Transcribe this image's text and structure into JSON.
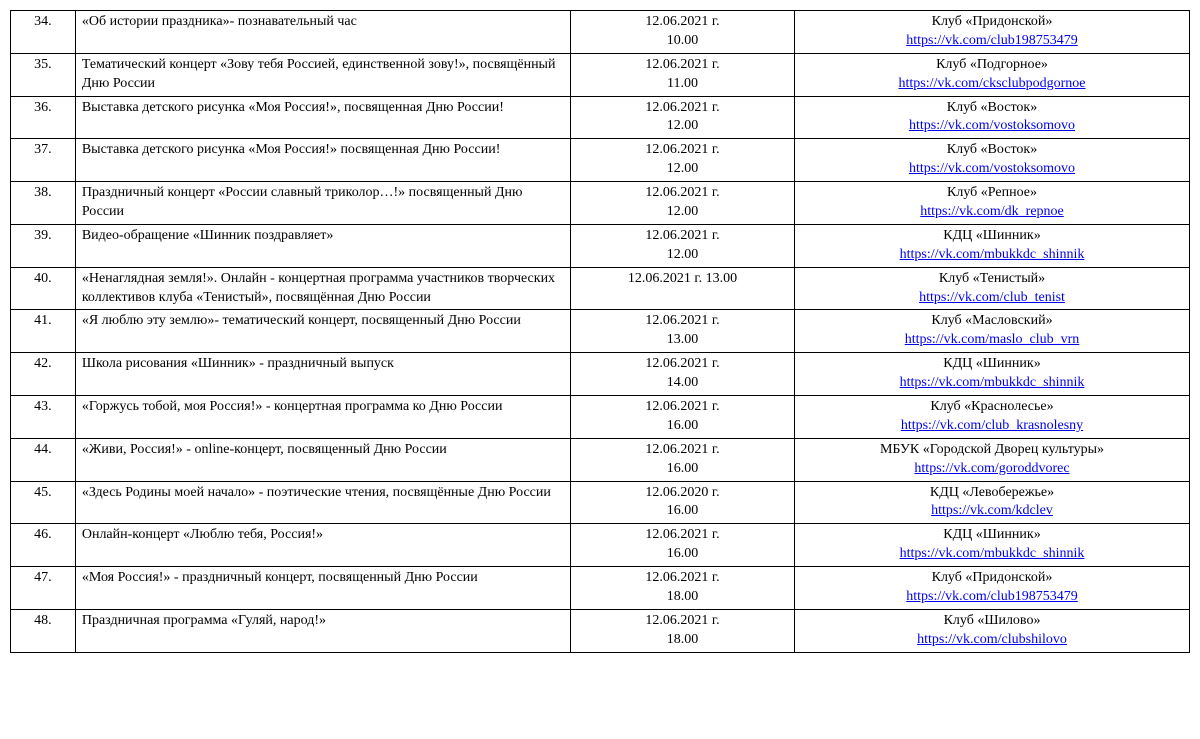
{
  "rows": [
    {
      "num": "34.",
      "desc": "«Об истории праздника»- познавательный час",
      "date": "12.06.2021 г.\n10.00",
      "venue": "Клуб «Придонской»",
      "link_text": "https://vk.com/club198753479",
      "link_href": "https://vk.com/club198753479"
    },
    {
      "num": "35.",
      "desc": "Тематический концерт «Зову тебя Россией, единственной зову!», посвящённый Дню России",
      "date": "12.06.2021 г.\n11.00",
      "venue": "Клуб «Подгорное»",
      "link_text": "https://vk.com/cksclubpodgornoe",
      "link_href": "https://vk.com/cksclubpodgornoe"
    },
    {
      "num": "36.",
      "desc": "Выставка детского рисунка «Моя Россия!», посвященная Дню России!",
      "date": "12.06.2021 г.\n12.00",
      "venue": "Клуб «Восток»",
      "link_text": "https://vk.com/vostoksomovo",
      "link_href": "https://vk.com/vostoksomovo"
    },
    {
      "num": "37.",
      "desc": "Выставка детского рисунка «Моя Россия!» посвященная Дню России!",
      "date": "12.06.2021 г.\n12.00",
      "venue": "Клуб «Восток»",
      "link_text": "https://vk.com/vostoksomovo",
      "link_href": "https://vk.com/vostoksomovo"
    },
    {
      "num": "38.",
      "desc": "Праздничный концерт «России славный триколор…!» посвященный Дню России",
      "date": "12.06.2021 г.\n12.00",
      "venue": "Клуб «Репное»",
      "link_text": "https://vk.com/dk_repnoe",
      "link_href": "https://vk.com/dk_repnoe"
    },
    {
      "num": "39.",
      "desc": "Видео-обращение «Шинник поздравляет»",
      "date": "12.06.2021 г.\n12.00",
      "venue": "КДЦ «Шинник»",
      "link_text": "https://vk.com/mbukkdc_shinnik",
      "link_href": "https://vk.com/mbukkdc_shinnik"
    },
    {
      "num": "40.",
      "desc": "«Ненаглядная земля!». Онлайн - концертная программа участников творческих коллективов клуба «Тенистый», посвящённая Дню России",
      "date": "12.06.2021 г. 13.00",
      "venue": "Клуб «Тенистый»",
      "link_text": "https://vk.com/club_tenist",
      "link_href": "https://vk.com/club_tenist"
    },
    {
      "num": "41.",
      "desc": "«Я люблю эту землю»- тематический концерт, посвященный Дню России",
      "date": "12.06.2021 г.\n13.00",
      "venue": "Клуб «Масловский»",
      "link_text": "https://vk.com/maslo_club_vrn",
      "link_href": "https://vk.com/maslo_club_vrn"
    },
    {
      "num": "42.",
      "desc": "Школа рисования «Шинник» - праздничный выпуск",
      "date": "12.06.2021 г.\n14.00",
      "venue": "КДЦ «Шинник»",
      "link_text": "https://vk.com/mbukkdc_shinnik",
      "link_href": "https://vk.com/mbukkdc_shinnik"
    },
    {
      "num": "43.",
      "desc": "«Горжусь тобой, моя Россия!» - концертная программа ко Дню России",
      "date": "12.06.2021 г.\n16.00",
      "venue": "Клуб «Краснолесье»",
      "link_text": "https://vk.com/club_krasnolesny",
      "link_href": "https://vk.com/club_krasnolesny"
    },
    {
      "num": "44.",
      "desc": "«Живи, Россия!» - online-концерт, посвященный Дню России",
      "date": "12.06.2021 г.\n16.00",
      "venue": "МБУК «Городской Дворец культуры»",
      "link_text": "https://vk.com/goroddvorec",
      "link_href": "https://vk.com/goroddvorec"
    },
    {
      "num": "45.",
      "desc": "«Здесь Родины моей начало» - поэтические чтения, посвящённые Дню России",
      "date": "12.06.2020 г.\n16.00",
      "venue": "КДЦ «Левобережье»",
      "link_text": "https://vk.com/kdclev",
      "link_href": "https://vk.com/kdclev"
    },
    {
      "num": "46.",
      "desc": "Онлайн-концерт «Люблю тебя, Россия!»",
      "date": "12.06.2021 г.\n16.00",
      "venue": "КДЦ «Шинник»",
      "link_text": "https://vk.com/mbukkdc_shinnik",
      "link_href": "https://vk.com/mbukkdc_shinnik"
    },
    {
      "num": "47.",
      "desc": "«Моя Россия!» - праздничный концерт, посвященный Дню России",
      "date": "12.06.2021 г.\n18.00",
      "venue": "Клуб «Придонской»",
      "link_text": "https://vk.com/club198753479",
      "link_href": "https://vk.com/club198753479"
    },
    {
      "num": "48.",
      "desc": "Праздничная программа «Гуляй, народ!»",
      "date": "12.06.2021 г.\n18.00",
      "venue": "Клуб «Шилово»",
      "link_text": "https://vk.com/clubshilovo",
      "link_href": "https://vk.com/clubshilovo"
    }
  ]
}
